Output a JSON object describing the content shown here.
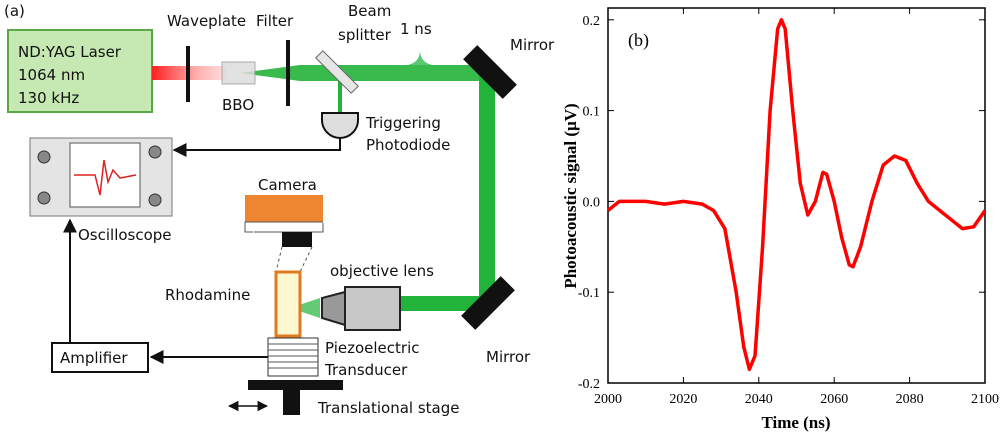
{
  "diagram": {
    "label": "(a)",
    "laser": {
      "lines": [
        "ND:YAG Laser",
        "1064 nm",
        "130 kHz"
      ]
    },
    "waveplate": "Waveplate",
    "filter": "Filter",
    "beam_splitter": {
      "lines": [
        "Beam",
        "splitter"
      ]
    },
    "pulse": "1 ns",
    "mirror_top": "Mirror",
    "mirror_bottom": "Mirror",
    "bbo": "BBO",
    "photodiode": {
      "lines": [
        "Triggering",
        "Photodiode"
      ]
    },
    "oscilloscope": "Oscilloscope",
    "camera": "Camera",
    "objective": "objective lens",
    "sample": "Rhodamine",
    "transducer": {
      "lines": [
        "Piezoelectric",
        "Transducer"
      ]
    },
    "amplifier": "Amplifier",
    "stage": "Translational stage"
  },
  "chart_data": {
    "type": "line",
    "panel_label": "(b)",
    "x_label": "Time (ns)",
    "y_label": "Photoacoustic signal (μV)",
    "x": [
      2000,
      2003,
      2010,
      2015,
      2020,
      2025,
      2028,
      2031,
      2034,
      2036,
      2037.5,
      2039,
      2041,
      2043,
      2045,
      2046,
      2047,
      2049,
      2051,
      2053,
      2055,
      2057,
      2058,
      2060,
      2062,
      2064,
      2065,
      2067,
      2070,
      2073,
      2076,
      2079,
      2082,
      2085,
      2088,
      2091,
      2094,
      2097,
      2100
    ],
    "values": [
      -0.01,
      0.0,
      0.0,
      -0.003,
      0.0,
      -0.003,
      -0.01,
      -0.03,
      -0.1,
      -0.16,
      -0.185,
      -0.17,
      -0.05,
      0.1,
      0.19,
      0.2,
      0.19,
      0.1,
      0.02,
      -0.015,
      0.0,
      0.032,
      0.03,
      0.0,
      -0.04,
      -0.07,
      -0.072,
      -0.05,
      0.0,
      0.04,
      0.05,
      0.045,
      0.02,
      0.0,
      -0.01,
      -0.02,
      -0.03,
      -0.028,
      -0.01
    ],
    "color": "#ff0000",
    "xlim": [
      2000,
      2100
    ],
    "ylim": [
      -0.2,
      0.213
    ],
    "xticks": [
      2000,
      2020,
      2040,
      2060,
      2080,
      2100
    ],
    "yticks": [
      -0.2,
      -0.1,
      {
        "value": 0,
        "label": "0.0"
      },
      0.1,
      0.2
    ]
  }
}
